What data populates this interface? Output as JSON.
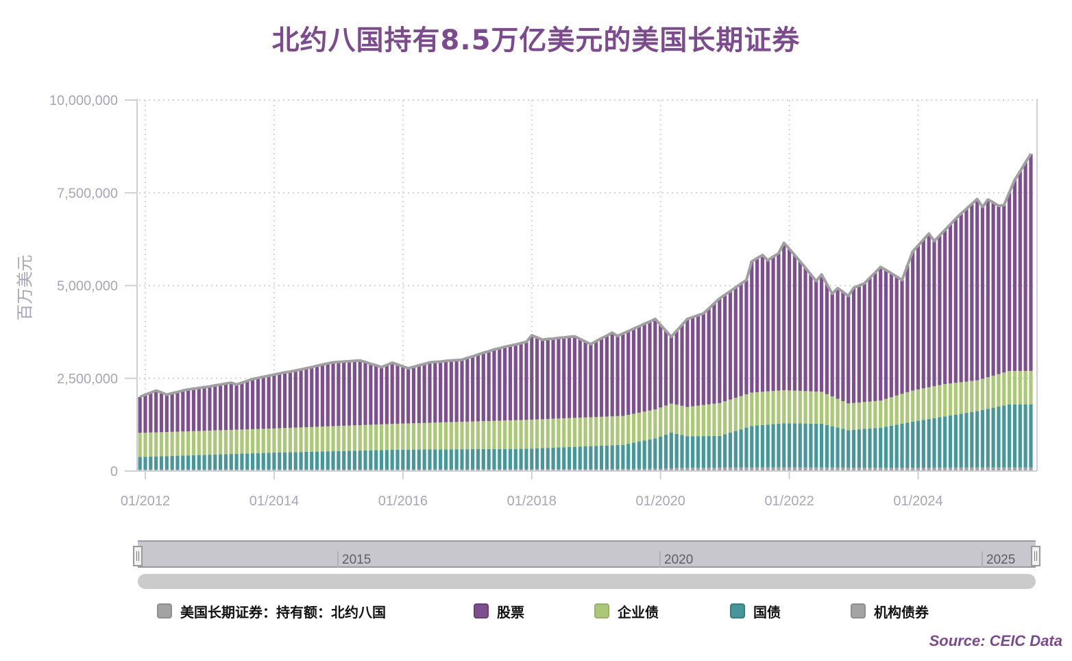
{
  "title": "北约八国持有8.5万亿美元的美国长期证券",
  "source": "Source: CEIC Data",
  "navigator": {
    "labels": [
      "2015",
      "2020",
      "2025"
    ]
  },
  "legend": [
    {
      "label": "美国长期证券：持有额：北约八国",
      "color": "#a3a3a3",
      "border": "#8e8e8e"
    },
    {
      "label": "股票",
      "color": "#7e4f8e",
      "border": "#6b3f7a"
    },
    {
      "label": "企业债",
      "color": "#abc878",
      "border": "#94b462"
    },
    {
      "label": "国债",
      "color": "#45979a",
      "border": "#357f82"
    },
    {
      "label": "机构债券",
      "color": "#a3a3a3",
      "border": "#8e8e8e"
    }
  ],
  "chart_data": {
    "type": "bar",
    "stacked": true,
    "title": "北约八国持有8.5万亿美元的美国长期证券",
    "xlabel": "",
    "ylabel": "百万美元",
    "ylim": [
      0,
      10000000
    ],
    "yticks": [
      0,
      2500000,
      5000000,
      7500000,
      10000000
    ],
    "ytick_labels": [
      "0",
      "2,500,000",
      "5,000,000",
      "7,500,000",
      "10,000,000"
    ],
    "xtick_labels": [
      "01/2012",
      "01/2014",
      "01/2016",
      "01/2018",
      "01/2020",
      "01/2022",
      "01/2024"
    ],
    "x_start": "12/2011",
    "x_end": "10/2025",
    "frequency": "monthly",
    "grid": true,
    "legend_position": "bottom",
    "total_series_name": "美国长期证券：持有额：北约八国",
    "total_anchors": [
      [
        "2011-12",
        2000000
      ],
      [
        "2012-03",
        2170000
      ],
      [
        "2012-05",
        2060000
      ],
      [
        "2012-09",
        2200000
      ],
      [
        "2012-12",
        2260000
      ],
      [
        "2013-05",
        2380000
      ],
      [
        "2013-06",
        2330000
      ],
      [
        "2013-09",
        2480000
      ],
      [
        "2013-12",
        2570000
      ],
      [
        "2014-06",
        2740000
      ],
      [
        "2014-12",
        2930000
      ],
      [
        "2015-05",
        2980000
      ],
      [
        "2015-09",
        2800000
      ],
      [
        "2015-11",
        2920000
      ],
      [
        "2016-02",
        2770000
      ],
      [
        "2016-06",
        2930000
      ],
      [
        "2016-12",
        3000000
      ],
      [
        "2017-06",
        3280000
      ],
      [
        "2017-12",
        3480000
      ],
      [
        "2018-01",
        3660000
      ],
      [
        "2018-03",
        3540000
      ],
      [
        "2018-09",
        3630000
      ],
      [
        "2018-12",
        3420000
      ],
      [
        "2019-04",
        3730000
      ],
      [
        "2019-05",
        3640000
      ],
      [
        "2019-12",
        4100000
      ],
      [
        "2020-03",
        3620000
      ],
      [
        "2020-06",
        4100000
      ],
      [
        "2020-09",
        4250000
      ],
      [
        "2020-12",
        4650000
      ],
      [
        "2021-05",
        5150000
      ],
      [
        "2021-06",
        5650000
      ],
      [
        "2021-08",
        5820000
      ],
      [
        "2021-09",
        5680000
      ],
      [
        "2021-11",
        5870000
      ],
      [
        "2021-12",
        6150000
      ],
      [
        "2022-02",
        5820000
      ],
      [
        "2022-04",
        5480000
      ],
      [
        "2022-06",
        5120000
      ],
      [
        "2022-07",
        5300000
      ],
      [
        "2022-09",
        4780000
      ],
      [
        "2022-10",
        4930000
      ],
      [
        "2022-12",
        4720000
      ],
      [
        "2023-01",
        4940000
      ],
      [
        "2023-03",
        5060000
      ],
      [
        "2023-06",
        5500000
      ],
      [
        "2023-08",
        5330000
      ],
      [
        "2023-10",
        5150000
      ],
      [
        "2023-12",
        5920000
      ],
      [
        "2024-03",
        6400000
      ],
      [
        "2024-04",
        6200000
      ],
      [
        "2024-08",
        6800000
      ],
      [
        "2024-10",
        7070000
      ],
      [
        "2024-12",
        7330000
      ],
      [
        "2025-01",
        7120000
      ],
      [
        "2025-02",
        7320000
      ],
      [
        "2025-04",
        7150000
      ],
      [
        "2025-05",
        7170000
      ],
      [
        "2025-07",
        7850000
      ],
      [
        "2025-10",
        8550000
      ]
    ],
    "treasury_anchors": [
      [
        "2011-12",
        340000
      ],
      [
        "2013-12",
        450000
      ],
      [
        "2015-12",
        530000
      ],
      [
        "2017-12",
        550000
      ],
      [
        "2019-06",
        650000
      ],
      [
        "2019-12",
        820000
      ],
      [
        "2020-03",
        960000
      ],
      [
        "2020-06",
        850000
      ],
      [
        "2020-12",
        850000
      ],
      [
        "2021-06",
        1120000
      ],
      [
        "2021-12",
        1190000
      ],
      [
        "2022-07",
        1180000
      ],
      [
        "2022-12",
        1010000
      ],
      [
        "2023-06",
        1080000
      ],
      [
        "2023-12",
        1240000
      ],
      [
        "2024-06",
        1380000
      ],
      [
        "2024-12",
        1520000
      ],
      [
        "2025-06",
        1700000
      ],
      [
        "2025-10",
        1700000
      ]
    ],
    "corporate_anchors": [
      [
        "2011-12",
        650000
      ],
      [
        "2013-12",
        650000
      ],
      [
        "2015-12",
        700000
      ],
      [
        "2017-12",
        780000
      ],
      [
        "2019-06",
        780000
      ],
      [
        "2019-12",
        780000
      ],
      [
        "2020-06",
        790000
      ],
      [
        "2020-12",
        890000
      ],
      [
        "2021-06",
        900000
      ],
      [
        "2021-12",
        890000
      ],
      [
        "2022-07",
        860000
      ],
      [
        "2022-12",
        720000
      ],
      [
        "2023-06",
        730000
      ],
      [
        "2023-12",
        840000
      ],
      [
        "2024-06",
        870000
      ],
      [
        "2024-12",
        830000
      ],
      [
        "2025-06",
        900000
      ],
      [
        "2025-10",
        900000
      ]
    ],
    "agency_anchors": [
      [
        "2011-12",
        40000
      ],
      [
        "2017-12",
        50000
      ],
      [
        "2019-12",
        60000
      ],
      [
        "2020-06",
        90000
      ],
      [
        "2021-12",
        100000
      ],
      [
        "2023-06",
        90000
      ],
      [
        "2025-10",
        100000
      ]
    ],
    "series": [
      {
        "name": "股票",
        "key": "equity",
        "color": "#7e4f8e",
        "note": "equity = total - corporate - treasury - agency"
      },
      {
        "name": "企业债",
        "key": "corporate",
        "color": "#abc878"
      },
      {
        "name": "国债",
        "key": "treasury",
        "color": "#45979a"
      },
      {
        "name": "机构债券",
        "key": "agency",
        "color": "#a3a3a3"
      }
    ],
    "last_total": 8550000
  }
}
